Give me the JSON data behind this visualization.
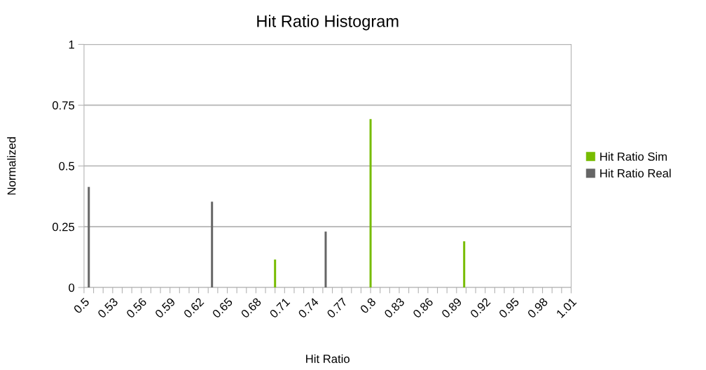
{
  "chart_data": {
    "type": "bar",
    "title": "Hit Ratio Histogram",
    "xlabel": "Hit Ratio",
    "ylabel": "Normalized",
    "series": [
      {
        "name": "Hit Ratio Sim",
        "color": "#77bc00",
        "x": [
          0.7,
          0.8,
          0.898
        ],
        "values": [
          0.115,
          0.693,
          0.19
        ]
      },
      {
        "name": "Hit Ratio Real",
        "color": "#666666",
        "x": [
          0.505,
          0.634,
          0.753
        ],
        "values": [
          0.414,
          0.353,
          0.23
        ]
      }
    ],
    "xlim": [
      0.5,
      1.01
    ],
    "xticks": [
      0.5,
      {
        "value": 0.51,
        "label": null
      },
      {
        "value": 0.52,
        "label": null
      },
      0.53,
      {
        "value": 0.54,
        "label": null
      },
      {
        "value": 0.55,
        "label": null
      },
      0.56,
      {
        "value": 0.57,
        "label": null
      },
      {
        "value": 0.58,
        "label": null
      },
      0.59,
      {
        "value": 0.6,
        "label": null
      },
      {
        "value": 0.61,
        "label": null
      },
      0.62,
      {
        "value": 0.63,
        "label": null
      },
      {
        "value": 0.64,
        "label": null
      },
      0.65,
      {
        "value": 0.66,
        "label": null
      },
      {
        "value": 0.67,
        "label": null
      },
      0.68,
      {
        "value": 0.69,
        "label": null
      },
      {
        "value": 0.7,
        "label": null
      },
      0.71,
      {
        "value": 0.72,
        "label": null
      },
      {
        "value": 0.73,
        "label": null
      },
      0.74,
      {
        "value": 0.75,
        "label": null
      },
      {
        "value": 0.76,
        "label": null
      },
      0.77,
      {
        "value": 0.78,
        "label": null
      },
      {
        "value": 0.79,
        "label": null
      },
      0.8,
      {
        "value": 0.81,
        "label": null
      },
      {
        "value": 0.82,
        "label": null
      },
      0.83,
      {
        "value": 0.84,
        "label": null
      },
      {
        "value": 0.85,
        "label": null
      },
      0.86,
      {
        "value": 0.87,
        "label": null
      },
      {
        "value": 0.88,
        "label": null
      },
      0.89,
      {
        "value": 0.9,
        "label": null
      },
      {
        "value": 0.91,
        "label": null
      },
      0.92,
      {
        "value": 0.93,
        "label": null
      },
      {
        "value": 0.94,
        "label": null
      },
      0.95,
      {
        "value": 0.96,
        "label": null
      },
      {
        "value": 0.97,
        "label": null
      },
      0.98,
      {
        "value": 0.99,
        "label": null
      },
      {
        "value": 1.0,
        "label": null
      },
      1.01
    ],
    "ylim": [
      0,
      1
    ],
    "yticks": [
      0,
      0.25,
      0.5,
      0.75,
      1
    ],
    "grid": "y",
    "legend": "right"
  }
}
